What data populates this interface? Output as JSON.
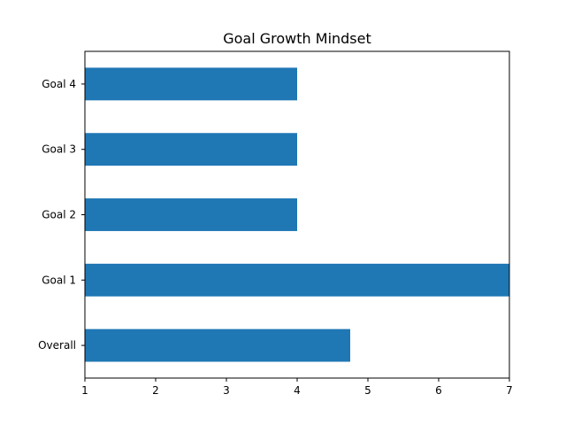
{
  "chart_data": {
    "type": "bar",
    "orientation": "horizontal",
    "title": "Goal Growth Mindset",
    "xlabel": "",
    "ylabel": "",
    "categories": [
      "Overall",
      "Goal 1",
      "Goal 2",
      "Goal 3",
      "Goal 4"
    ],
    "values": [
      4.75,
      7,
      4,
      4,
      4
    ],
    "xlim": [
      1,
      7
    ],
    "xticks": [
      "1",
      "2",
      "3",
      "4",
      "5",
      "6",
      "7"
    ],
    "grid": false,
    "bar_color": "#1f77b4"
  }
}
